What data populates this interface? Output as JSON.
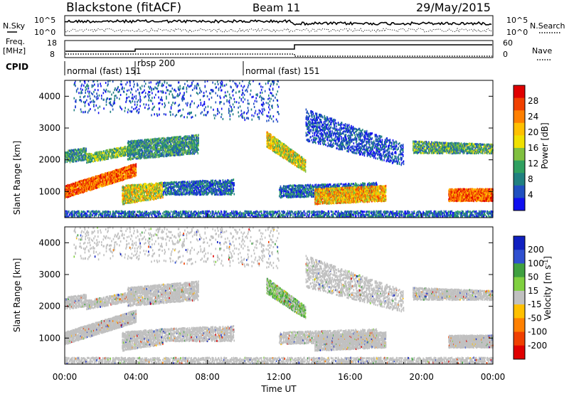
{
  "header": {
    "station": "Blackstone (fitACF)",
    "beam": "Beam 11",
    "date": "29/May/2015"
  },
  "top_panel": {
    "nsky_label": "N.Sky",
    "nsearch_label": "N.Search",
    "left_ticks": [
      "10^5",
      "10^0"
    ],
    "right_ticks": [
      "10^5",
      "10^0"
    ],
    "freq_label_1": "Freq.",
    "freq_label_2": "[MHz]",
    "freq_ticks": [
      "18",
      "8"
    ],
    "nave_label": "Nave",
    "nave_ticks": [
      "60",
      "0"
    ],
    "cpid_label": "CPID",
    "cpid_segments": [
      {
        "label": "normal (fast) 151",
        "start_h": 0,
        "end_h": 3.9
      },
      {
        "label": "rbsp 200",
        "start_h": 3.9,
        "end_h": 9.9
      },
      {
        "label": "normal (fast) 151",
        "start_h": 9.9,
        "end_h": 24
      }
    ]
  },
  "chart_data": [
    {
      "type": "heatmap",
      "title": "",
      "xlabel": "",
      "ylabel": "Slant Range [km]",
      "colorbar_label": "Power [dB]",
      "colorbar_ticks": [
        "28",
        "24",
        "20",
        "16",
        "12",
        "8",
        "4"
      ],
      "colorbar_colors": [
        "#e00000",
        "#f04000",
        "#ff8000",
        "#ffc000",
        "#f0e000",
        "#80c040",
        "#30a060",
        "#208080",
        "#2050c0",
        "#1010f0"
      ],
      "y_ticks": [
        "4000",
        "3000",
        "2000",
        "1000"
      ],
      "ylim": [
        180,
        4500
      ]
    },
    {
      "type": "heatmap",
      "title": "",
      "xlabel": "Time UT",
      "ylabel": "Slant Range [km]",
      "colorbar_label": "Velocity [m s^-1]",
      "colorbar_ticks": [
        "200",
        "100",
        "50",
        "15",
        "-15",
        "-50",
        "-100",
        "-200"
      ],
      "colorbar_colors": [
        "#1020c0",
        "#3050d0",
        "#40a040",
        "#80d040",
        "#c0c0c0",
        "#ffc000",
        "#ff8000",
        "#f04000",
        "#e00000"
      ],
      "x_ticks": [
        "00:00",
        "04:00",
        "08:00",
        "12:00",
        "16:00",
        "20:00",
        "00:00"
      ],
      "y_ticks": [
        "4000",
        "3000",
        "2000",
        "1000"
      ],
      "ylim": [
        180,
        4500
      ]
    }
  ]
}
